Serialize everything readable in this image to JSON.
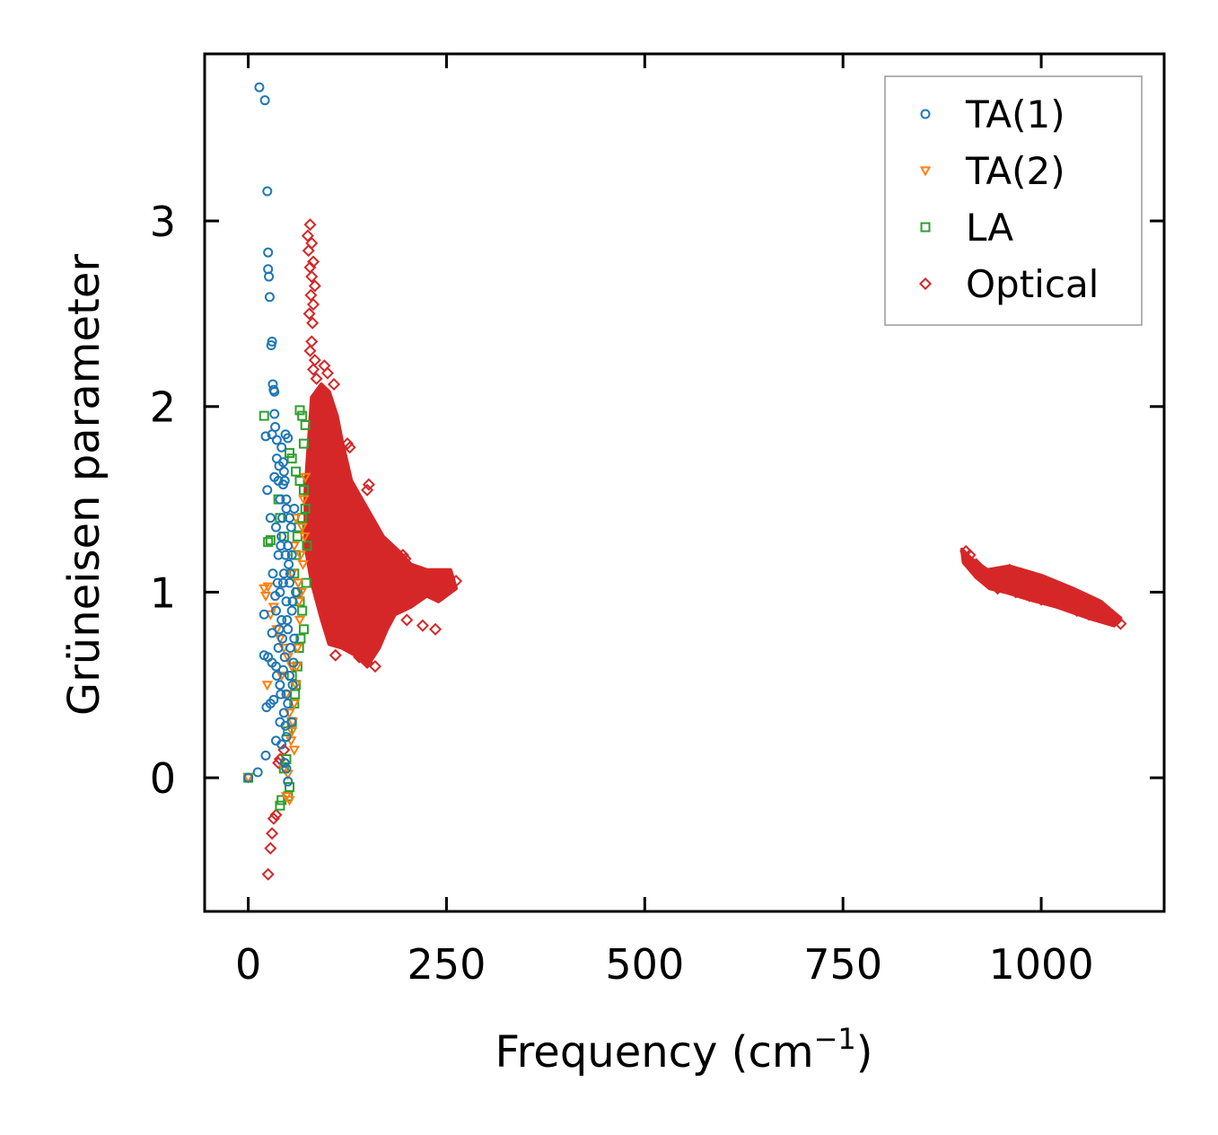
{
  "chart_data": {
    "type": "scatter",
    "title": "",
    "xlabel": "Frequency (cm",
    "xlabel_sup": "−1",
    "xlabel_close": ")",
    "ylabel": "Grüneisen parameter",
    "xlim": [
      -55,
      1155
    ],
    "ylim": [
      -0.72,
      3.9
    ],
    "xticks": [
      0,
      250,
      500,
      750,
      1000
    ],
    "xtick_labels": [
      "0",
      "250",
      "500",
      "750",
      "1000"
    ],
    "yticks": [
      0,
      1,
      2,
      3
    ],
    "ytick_labels": [
      "0",
      "1",
      "2",
      "3"
    ],
    "grid": false,
    "legend_position": "top-right",
    "series": [
      {
        "name": "TA(1)",
        "marker": "circle",
        "color": "#1f77b4",
        "points": [
          [
            0,
            0
          ],
          [
            12,
            0.03
          ],
          [
            14,
            3.72
          ],
          [
            21,
            3.65
          ],
          [
            24,
            3.16
          ],
          [
            25,
            2.83
          ],
          [
            25,
            2.74
          ],
          [
            26,
            2.7
          ],
          [
            27,
            2.59
          ],
          [
            30,
            2.35
          ],
          [
            29,
            2.33
          ],
          [
            32,
            2.09
          ],
          [
            31,
            2.12
          ],
          [
            33,
            2.08
          ],
          [
            33,
            1.96
          ],
          [
            34,
            1.89
          ],
          [
            22,
            1.84
          ],
          [
            30,
            1.85
          ],
          [
            36,
            1.82
          ],
          [
            42,
            1.78
          ],
          [
            47,
            1.85
          ],
          [
            50,
            1.83
          ],
          [
            24,
            1.55
          ],
          [
            33,
            1.62
          ],
          [
            38,
            1.6
          ],
          [
            45,
            1.65
          ],
          [
            40,
            1.5
          ],
          [
            48,
            1.45
          ],
          [
            52,
            1.4
          ],
          [
            28,
            1.4
          ],
          [
            35,
            1.35
          ],
          [
            42,
            1.3
          ],
          [
            50,
            1.25
          ],
          [
            55,
            1.2
          ],
          [
            38,
            1.2
          ],
          [
            45,
            1.1
          ],
          [
            52,
            1.05
          ],
          [
            60,
            1.0
          ],
          [
            40,
            1.0
          ],
          [
            48,
            0.95
          ],
          [
            55,
            0.9
          ],
          [
            35,
            0.9
          ],
          [
            20,
            0.88
          ],
          [
            42,
            0.85
          ],
          [
            50,
            0.8
          ],
          [
            58,
            0.75
          ],
          [
            30,
            0.78
          ],
          [
            38,
            0.7
          ],
          [
            46,
            0.65
          ],
          [
            20,
            0.66
          ],
          [
            25,
            0.65
          ],
          [
            30,
            0.62
          ],
          [
            35,
            0.6
          ],
          [
            44,
            0.58
          ],
          [
            52,
            0.55
          ],
          [
            40,
            0.5
          ],
          [
            48,
            0.45
          ],
          [
            32,
            0.42
          ],
          [
            28,
            0.4
          ],
          [
            23,
            0.38
          ],
          [
            50,
            0.4
          ],
          [
            45,
            0.35
          ],
          [
            40,
            0.3
          ],
          [
            55,
            0.3
          ],
          [
            35,
            0.2
          ],
          [
            48,
            0.22
          ],
          [
            22,
            0.12
          ],
          [
            46,
            0.08
          ],
          [
            48,
            0.05
          ],
          [
            50,
            -0.02
          ],
          [
            44,
            1.7
          ],
          [
            46,
            1.6
          ],
          [
            48,
            1.5
          ],
          [
            43,
            1.4
          ],
          [
            47,
            1.2
          ],
          [
            51,
            1.15
          ],
          [
            53,
            1.1
          ],
          [
            44,
            1.05
          ],
          [
            56,
            0.95
          ],
          [
            49,
            0.85
          ],
          [
            39,
            0.8
          ],
          [
            43,
            0.75
          ],
          [
            53,
            0.7
          ],
          [
            57,
            0.62
          ],
          [
            36,
            0.55
          ],
          [
            41,
            0.45
          ],
          [
            56,
            0.5
          ],
          [
            47,
            0.28
          ],
          [
            42,
            0.18
          ],
          [
            54,
            1.35
          ],
          [
            58,
            1.45
          ],
          [
            36,
            1.72
          ],
          [
            39,
            1.68
          ],
          [
            44,
            1.58
          ],
          [
            41,
            1.25
          ],
          [
            37,
            1.05
          ],
          [
            34,
            0.98
          ],
          [
            31,
            1.1
          ]
        ]
      },
      {
        "name": "TA(2)",
        "marker": "triangle-down",
        "color": "#ff7f0e",
        "points": [
          [
            0,
            0
          ],
          [
            20,
            1.02
          ],
          [
            22,
            0.98
          ],
          [
            25,
            1.03
          ],
          [
            32,
            0.92
          ],
          [
            28,
            0.88
          ],
          [
            24,
            0.5
          ],
          [
            36,
            0.8
          ],
          [
            40,
            0.75
          ],
          [
            45,
            0.7
          ],
          [
            50,
            0.65
          ],
          [
            55,
            0.6
          ],
          [
            42,
            0.55
          ],
          [
            48,
            0.45
          ],
          [
            52,
            0.35
          ],
          [
            55,
            0.25
          ],
          [
            58,
            0.15
          ],
          [
            45,
            0.05
          ],
          [
            50,
            0.02
          ],
          [
            48,
            -0.1
          ],
          [
            52,
            -0.12
          ],
          [
            58,
            0.4
          ],
          [
            60,
            0.5
          ],
          [
            62,
            0.7
          ],
          [
            65,
            0.85
          ],
          [
            63,
            1.05
          ],
          [
            66,
            1.2
          ],
          [
            68,
            1.35
          ],
          [
            70,
            1.5
          ],
          [
            72,
            1.62
          ],
          [
            55,
            1.1
          ],
          [
            58,
            1.25
          ],
          [
            60,
            1.4
          ],
          [
            64,
            0.95
          ],
          [
            67,
            1.0
          ],
          [
            69,
            1.15
          ],
          [
            71,
            1.3
          ],
          [
            56,
            0.3
          ],
          [
            54,
            0.2
          ],
          [
            61,
            0.6
          ]
        ]
      },
      {
        "name": "LA",
        "marker": "square",
        "color": "#2ca02c",
        "points": [
          [
            0,
            0
          ],
          [
            20,
            1.95
          ],
          [
            25,
            1.27
          ],
          [
            28,
            1.28
          ],
          [
            65,
            1.98
          ],
          [
            68,
            1.95
          ],
          [
            72,
            1.9
          ],
          [
            70,
            1.8
          ],
          [
            52,
            1.75
          ],
          [
            55,
            1.72
          ],
          [
            60,
            1.65
          ],
          [
            65,
            1.6
          ],
          [
            70,
            1.55
          ],
          [
            72,
            1.45
          ],
          [
            68,
            1.4
          ],
          [
            64,
            1.35
          ],
          [
            62,
            1.3
          ],
          [
            60,
            1.2
          ],
          [
            58,
            1.1
          ],
          [
            62,
            1.0
          ],
          [
            65,
            0.95
          ],
          [
            68,
            0.9
          ],
          [
            70,
            0.8
          ],
          [
            66,
            0.75
          ],
          [
            64,
            0.7
          ],
          [
            62,
            0.6
          ],
          [
            60,
            0.5
          ],
          [
            58,
            0.4
          ],
          [
            55,
            0.3
          ],
          [
            50,
            0.25
          ],
          [
            48,
            0.1
          ],
          [
            45,
            0.05
          ],
          [
            52,
            -0.05
          ],
          [
            50,
            -0.1
          ],
          [
            40,
            -0.15
          ],
          [
            42,
            -0.12
          ],
          [
            38,
            1.5
          ],
          [
            40,
            1.4
          ],
          [
            45,
            1.3
          ],
          [
            55,
            0.55
          ],
          [
            59,
            0.45
          ],
          [
            73,
            1.05
          ],
          [
            74,
            1.25
          ]
        ]
      },
      {
        "name": "Optical",
        "marker": "diamond",
        "color": "#d62728",
        "points": [
          [
            25,
            -0.52
          ],
          [
            28,
            -0.38
          ],
          [
            30,
            -0.3
          ],
          [
            32,
            -0.22
          ],
          [
            35,
            -0.2
          ],
          [
            38,
            0.08
          ],
          [
            40,
            0.1
          ],
          [
            45,
            0.15
          ],
          [
            78,
            2.98
          ],
          [
            75,
            2.92
          ],
          [
            80,
            2.88
          ],
          [
            76,
            2.84
          ],
          [
            82,
            2.78
          ],
          [
            78,
            2.75
          ],
          [
            80,
            2.7
          ],
          [
            84,
            2.65
          ],
          [
            79,
            2.6
          ],
          [
            82,
            2.55
          ],
          [
            77,
            2.5
          ],
          [
            81,
            2.45
          ],
          [
            80,
            2.35
          ],
          [
            78,
            2.3
          ],
          [
            84,
            2.25
          ],
          [
            82,
            2.2
          ],
          [
            86,
            2.15
          ],
          [
            96,
            2.22
          ],
          [
            100,
            2.18
          ],
          [
            108,
            2.12
          ],
          [
            125,
            1.8
          ],
          [
            128,
            1.78
          ],
          [
            150,
            1.55
          ],
          [
            152,
            1.58
          ],
          [
            225,
            1.05
          ],
          [
            230,
            1.08
          ],
          [
            245,
            1.05
          ],
          [
            255,
            1.02
          ],
          [
            262,
            1.06
          ],
          [
            195,
            1.2
          ],
          [
            198,
            1.18
          ],
          [
            200,
            0.85
          ],
          [
            220,
            0.82
          ],
          [
            236,
            0.8
          ],
          [
            160,
            0.6
          ],
          [
            150,
            0.62
          ],
          [
            140,
            0.65
          ],
          [
            110,
            0.66
          ],
          [
            905,
            1.22
          ],
          [
            910,
            1.2
          ],
          [
            918,
            1.15
          ],
          [
            925,
            1.1
          ],
          [
            935,
            1.05
          ],
          [
            945,
            1.02
          ],
          [
            960,
            1.12
          ],
          [
            975,
            1.1
          ],
          [
            990,
            1.08
          ],
          [
            1005,
            1.05
          ],
          [
            1020,
            1.02
          ],
          [
            1035,
            0.98
          ],
          [
            1050,
            0.94
          ],
          [
            1065,
            0.91
          ],
          [
            1080,
            0.88
          ],
          [
            1095,
            0.85
          ],
          [
            1100,
            0.83
          ],
          [
            968,
            1.0
          ],
          [
            985,
            0.98
          ],
          [
            1000,
            0.96
          ],
          [
            1015,
            0.95
          ],
          [
            1030,
            0.93
          ],
          [
            1045,
            0.9
          ],
          [
            1060,
            0.88
          ]
        ]
      }
    ]
  }
}
